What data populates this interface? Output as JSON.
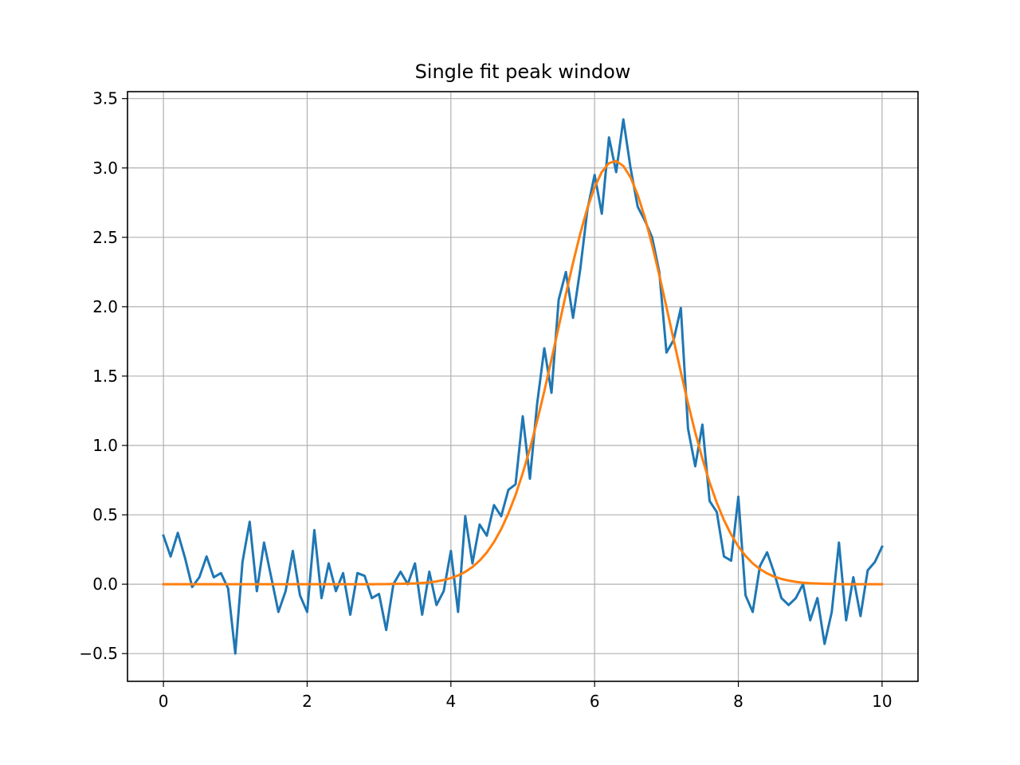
{
  "chart_data": {
    "type": "line",
    "title": "Single fit peak window",
    "x": [
      0,
      0.1,
      0.2,
      0.3,
      0.4,
      0.5,
      0.6,
      0.7,
      0.8,
      0.9,
      1,
      1.1,
      1.2,
      1.3,
      1.4,
      1.5,
      1.6,
      1.7,
      1.8,
      1.9,
      2,
      2.1,
      2.2,
      2.3,
      2.4,
      2.5,
      2.6,
      2.7,
      2.8,
      2.9,
      3,
      3.1,
      3.2,
      3.3,
      3.4,
      3.5,
      3.6,
      3.7,
      3.8,
      3.9,
      4,
      4.1,
      4.2,
      4.3,
      4.4,
      4.5,
      4.6,
      4.7,
      4.8,
      4.9,
      5,
      5.1,
      5.2,
      5.3,
      5.4,
      5.5,
      5.6,
      5.7,
      5.8,
      5.9,
      6,
      6.1,
      6.2,
      6.3,
      6.4,
      6.5,
      6.6,
      6.7,
      6.8,
      6.9,
      7,
      7.1,
      7.2,
      7.3,
      7.4,
      7.5,
      7.6,
      7.7,
      7.8,
      7.9,
      8,
      8.1,
      8.2,
      8.3,
      8.4,
      8.5,
      8.6,
      8.7,
      8.8,
      8.9,
      9,
      9.1,
      9.2,
      9.3,
      9.4,
      9.5,
      9.6,
      9.7,
      9.8,
      9.9,
      10
    ],
    "series": [
      {
        "color": "#1f77b4",
        "values": [
          0.35,
          0.2,
          0.37,
          0.19,
          -0.02,
          0.05,
          0.2,
          0.05,
          0.08,
          -0.03,
          -0.5,
          0.16,
          0.45,
          -0.05,
          0.3,
          0.05,
          -0.2,
          -0.05,
          0.24,
          -0.08,
          -0.2,
          0.39,
          -0.1,
          0.15,
          -0.05,
          0.08,
          -0.22,
          0.08,
          0.06,
          -0.1,
          -0.07,
          -0.33,
          0.0,
          0.09,
          0.0,
          0.15,
          -0.22,
          0.09,
          -0.15,
          -0.05,
          0.24,
          -0.2,
          0.49,
          0.15,
          0.43,
          0.35,
          0.57,
          0.49,
          0.68,
          0.72,
          1.21,
          0.76,
          1.3,
          1.7,
          1.38,
          2.05,
          2.25,
          1.92,
          2.27,
          2.7,
          2.95,
          2.67,
          3.22,
          2.97,
          3.35,
          3.0,
          2.72,
          2.62,
          2.5,
          2.25,
          1.67,
          1.76,
          1.99,
          1.12,
          0.85,
          1.15,
          0.6,
          0.52,
          0.2,
          0.17,
          0.63,
          -0.08,
          -0.2,
          0.13,
          0.23,
          0.08,
          -0.1,
          -0.15,
          -0.1,
          0.0,
          -0.26,
          -0.1,
          -0.43,
          -0.2,
          0.3,
          -0.26,
          0.05,
          -0.23,
          0.1,
          0.16,
          0.27
        ]
      },
      {
        "color": "#ff7f0e",
        "values": [
          0,
          0,
          0,
          0,
          0,
          0,
          0,
          0,
          0,
          0,
          0,
          0,
          0,
          0,
          0,
          0,
          0,
          0,
          0,
          0,
          0,
          0,
          0,
          0,
          0,
          0,
          0,
          0,
          0,
          0,
          0.001,
          0.001,
          0.002,
          0.003,
          0.004,
          0.006,
          0.009,
          0.013,
          0.02,
          0.03,
          0.044,
          0.063,
          0.089,
          0.124,
          0.17,
          0.229,
          0.304,
          0.397,
          0.51,
          0.643,
          0.8,
          0.977,
          1.176,
          1.391,
          1.62,
          1.855,
          2.09,
          2.317,
          2.527,
          2.711,
          2.861,
          2.971,
          3.035,
          3.05,
          3.014,
          2.932,
          2.805,
          2.641,
          2.445,
          2.228,
          1.997,
          1.761,
          1.528,
          1.303,
          1.094,
          0.904,
          0.734,
          0.587,
          0.462,
          0.358,
          0.272,
          0.204,
          0.15,
          0.109,
          0.078,
          0.054,
          0.038,
          0.026,
          0.017,
          0.011,
          0.007,
          0.005,
          0.003,
          0.002,
          0.001,
          0,
          0,
          0,
          0,
          0,
          0
        ]
      }
    ],
    "xlim": [
      -0.5,
      10.5
    ],
    "xticks": [
      0,
      2,
      4,
      6,
      8,
      10
    ],
    "ylim": [
      -0.7,
      3.55
    ],
    "yticks": [
      {
        "value": -0.5,
        "label": "−0.5"
      },
      {
        "value": 0,
        "label": "0.0"
      },
      {
        "value": 0.5,
        "label": "0.5"
      },
      {
        "value": 1,
        "label": "1.0"
      },
      {
        "value": 1.5,
        "label": "1.5"
      },
      {
        "value": 2,
        "label": "2.0"
      },
      {
        "value": 2.5,
        "label": "2.5"
      },
      {
        "value": 3,
        "label": "3.0"
      },
      {
        "value": 3.5,
        "label": "3.5"
      }
    ],
    "grid": true
  }
}
